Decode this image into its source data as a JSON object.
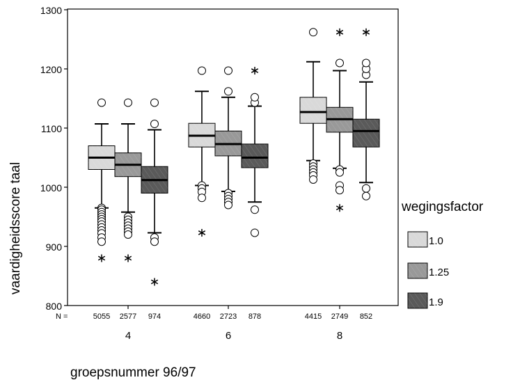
{
  "chart_data": {
    "type": "boxplot",
    "xlabel": "groepsnummer 96/97",
    "ylabel": "vaardigheidsscore taal",
    "ylim": [
      800,
      1300
    ],
    "yticks": [
      800,
      900,
      1000,
      1100,
      1200,
      1300
    ],
    "groups": [
      "4",
      "6",
      "8"
    ],
    "n_label": "N =",
    "legend": {
      "title": "wegingsfactor",
      "position": "right",
      "entries": [
        {
          "label": "1.0",
          "color": "#d9d9d9"
        },
        {
          "label": "1.25",
          "color": "#999999"
        },
        {
          "label": "1.9",
          "color": "#5a5a5a"
        }
      ]
    },
    "series": [
      {
        "legend": "1.0",
        "boxes": [
          {
            "group": "4",
            "n": "5055",
            "whisker_low": 965,
            "q1": 1030,
            "median": 1050,
            "q3": 1070,
            "whisker_high": 1107,
            "outliers": [
              965,
              962,
              958,
              954,
              950,
              946,
              942,
              937,
              932,
              927,
              922,
              915,
              908,
              1143
            ],
            "extremes": [
              880
            ]
          },
          {
            "group": "6",
            "n": "4660",
            "whisker_low": 1003,
            "q1": 1068,
            "median": 1087,
            "q3": 1108,
            "whisker_high": 1162,
            "outliers": [
              1003,
              998,
              992,
              982,
              1197
            ],
            "extremes": [
              923
            ]
          },
          {
            "group": "8",
            "n": "4415",
            "whisker_low": 1045,
            "q1": 1108,
            "median": 1127,
            "q3": 1152,
            "whisker_high": 1212,
            "outliers": [
              1040,
              1035,
              1030,
              1025,
              1020,
              1013,
              1262
            ],
            "extremes": []
          }
        ]
      },
      {
        "legend": "1.25",
        "boxes": [
          {
            "group": "4",
            "n": "2577",
            "whisker_low": 958,
            "q1": 1018,
            "median": 1038,
            "q3": 1058,
            "whisker_high": 1107,
            "outliers": [
              950,
              945,
              940,
              935,
              930,
              925,
              920,
              1143
            ],
            "extremes": [
              880
            ]
          },
          {
            "group": "6",
            "n": "2723",
            "whisker_low": 993,
            "q1": 1053,
            "median": 1073,
            "q3": 1095,
            "whisker_high": 1152,
            "outliers": [
              990,
              985,
              980,
              975,
              970,
              1162,
              1197
            ],
            "extremes": []
          },
          {
            "group": "8",
            "n": "2749",
            "whisker_low": 1032,
            "q1": 1093,
            "median": 1115,
            "q3": 1135,
            "whisker_high": 1197,
            "outliers": [
              1030,
              1025,
              1003,
              995,
              1210
            ],
            "extremes": [
              965,
              1262
            ]
          }
        ]
      },
      {
        "legend": "1.9",
        "boxes": [
          {
            "group": "4",
            "n": "974",
            "whisker_low": 923,
            "q1": 990,
            "median": 1012,
            "q3": 1035,
            "whisker_high": 1097,
            "outliers": [
              915,
              908,
              1107,
              1143
            ],
            "extremes": [
              840
            ]
          },
          {
            "group": "6",
            "n": "878",
            "whisker_low": 975,
            "q1": 1033,
            "median": 1050,
            "q3": 1073,
            "whisker_high": 1137,
            "outliers": [
              962,
              923,
              1143,
              1152
            ],
            "extremes": [
              1197
            ]
          },
          {
            "group": "8",
            "n": "852",
            "whisker_low": 1008,
            "q1": 1068,
            "median": 1095,
            "q3": 1115,
            "whisker_high": 1178,
            "outliers": [
              998,
              985,
              1190,
              1200,
              1210
            ],
            "extremes": [
              1262
            ]
          }
        ]
      }
    ]
  }
}
